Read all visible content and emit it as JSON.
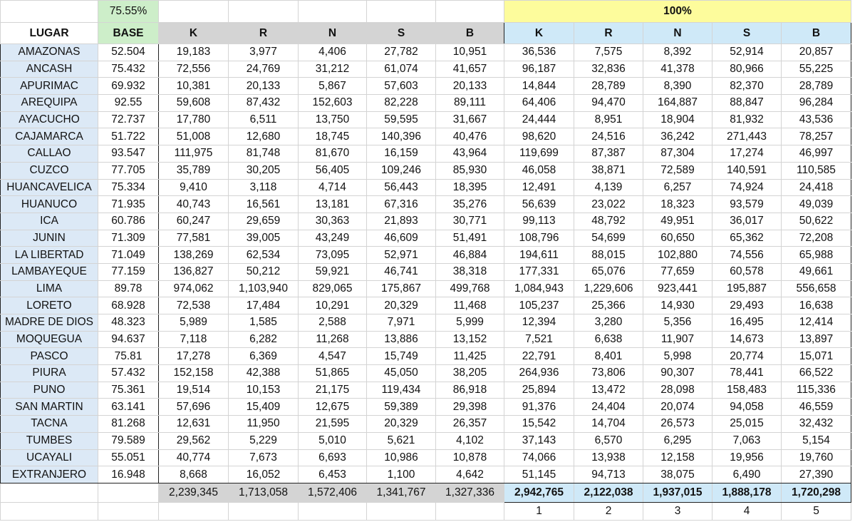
{
  "sheet": {
    "base_percent": "75.55%",
    "full_percent": "100%",
    "headers": {
      "lugar": "LUGAR",
      "base": "BASE",
      "votes_base": [
        "K",
        "R",
        "N",
        "S",
        "B"
      ],
      "votes_full": [
        "K",
        "R",
        "N",
        "S",
        "B"
      ]
    },
    "rows": [
      {
        "lugar": "AMAZONAS",
        "base": "52.504",
        "v1": [
          "19,183",
          "3,977",
          "4,406",
          "27,782",
          "10,951"
        ],
        "v2": [
          "36,536",
          "7,575",
          "8,392",
          "52,914",
          "20,857"
        ]
      },
      {
        "lugar": "ANCASH",
        "base": "75.432",
        "v1": [
          "72,556",
          "24,769",
          "31,212",
          "61,074",
          "41,657"
        ],
        "v2": [
          "96,187",
          "32,836",
          "41,378",
          "80,966",
          "55,225"
        ]
      },
      {
        "lugar": "APURIMAC",
        "base": "69.932",
        "v1": [
          "10,381",
          "20,133",
          "5,867",
          "57,603",
          "20,133"
        ],
        "v2": [
          "14,844",
          "28,789",
          "8,390",
          "82,370",
          "28,789"
        ]
      },
      {
        "lugar": "AREQUIPA",
        "base": "92.55",
        "v1": [
          "59,608",
          "87,432",
          "152,603",
          "82,228",
          "89,111"
        ],
        "v2": [
          "64,406",
          "94,470",
          "164,887",
          "88,847",
          "96,284"
        ]
      },
      {
        "lugar": "AYACUCHO",
        "base": "72.737",
        "v1": [
          "17,780",
          "6,511",
          "13,750",
          "59,595",
          "31,667"
        ],
        "v2": [
          "24,444",
          "8,951",
          "18,904",
          "81,932",
          "43,536"
        ]
      },
      {
        "lugar": "CAJAMARCA",
        "base": "51.722",
        "v1": [
          "51,008",
          "12,680",
          "18,745",
          "140,396",
          "40,476"
        ],
        "v2": [
          "98,620",
          "24,516",
          "36,242",
          "271,443",
          "78,257"
        ]
      },
      {
        "lugar": "CALLAO",
        "base": "93.547",
        "v1": [
          "111,975",
          "81,748",
          "81,670",
          "16,159",
          "43,964"
        ],
        "v2": [
          "119,699",
          "87,387",
          "87,304",
          "17,274",
          "46,997"
        ]
      },
      {
        "lugar": "CUZCO",
        "base": "77.705",
        "v1": [
          "35,789",
          "30,205",
          "56,405",
          "109,246",
          "85,930"
        ],
        "v2": [
          "46,058",
          "38,871",
          "72,589",
          "140,591",
          "110,585"
        ]
      },
      {
        "lugar": "HUANCAVELICA",
        "base": "75.334",
        "v1": [
          "9,410",
          "3,118",
          "4,714",
          "56,443",
          "18,395"
        ],
        "v2": [
          "12,491",
          "4,139",
          "6,257",
          "74,924",
          "24,418"
        ]
      },
      {
        "lugar": "HUANUCO",
        "base": "71.935",
        "v1": [
          "40,743",
          "16,561",
          "13,181",
          "67,316",
          "35,276"
        ],
        "v2": [
          "56,639",
          "23,022",
          "18,323",
          "93,579",
          "49,039"
        ]
      },
      {
        "lugar": "ICA",
        "base": "60.786",
        "v1": [
          "60,247",
          "29,659",
          "30,363",
          "21,893",
          "30,771"
        ],
        "v2": [
          "99,113",
          "48,792",
          "49,951",
          "36,017",
          "50,622"
        ]
      },
      {
        "lugar": "JUNIN",
        "base": "71.309",
        "v1": [
          "77,581",
          "39,005",
          "43,249",
          "46,609",
          "51,491"
        ],
        "v2": [
          "108,796",
          "54,699",
          "60,650",
          "65,362",
          "72,208"
        ]
      },
      {
        "lugar": "LA LIBERTAD",
        "base": "71.049",
        "v1": [
          "138,269",
          "62,534",
          "73,095",
          "52,971",
          "46,884"
        ],
        "v2": [
          "194,611",
          "88,015",
          "102,880",
          "74,556",
          "65,988"
        ]
      },
      {
        "lugar": "LAMBAYEQUE",
        "base": "77.159",
        "v1": [
          "136,827",
          "50,212",
          "59,921",
          "46,741",
          "38,318"
        ],
        "v2": [
          "177,331",
          "65,076",
          "77,659",
          "60,578",
          "49,661"
        ]
      },
      {
        "lugar": "LIMA",
        "base": "89.78",
        "v1": [
          "974,062",
          "1,103,940",
          "829,065",
          "175,867",
          "499,768"
        ],
        "v2": [
          "1,084,943",
          "1,229,606",
          "923,441",
          "195,887",
          "556,658"
        ]
      },
      {
        "lugar": "LORETO",
        "base": "68.928",
        "v1": [
          "72,538",
          "17,484",
          "10,291",
          "20,329",
          "11,468"
        ],
        "v2": [
          "105,237",
          "25,366",
          "14,930",
          "29,493",
          "16,638"
        ]
      },
      {
        "lugar": "MADRE DE DIOS",
        "base": "48.323",
        "v1": [
          "5,989",
          "1,585",
          "2,588",
          "7,971",
          "5,999"
        ],
        "v2": [
          "12,394",
          "3,280",
          "5,356",
          "16,495",
          "12,414"
        ]
      },
      {
        "lugar": "MOQUEGUA",
        "base": "94.637",
        "v1": [
          "7,118",
          "6,282",
          "11,268",
          "13,886",
          "13,152"
        ],
        "v2": [
          "7,521",
          "6,638",
          "11,907",
          "14,673",
          "13,897"
        ]
      },
      {
        "lugar": "PASCO",
        "base": "75.81",
        "v1": [
          "17,278",
          "6,369",
          "4,547",
          "15,749",
          "11,425"
        ],
        "v2": [
          "22,791",
          "8,401",
          "5,998",
          "20,774",
          "15,071"
        ]
      },
      {
        "lugar": "PIURA",
        "base": "57.432",
        "v1": [
          "152,158",
          "42,388",
          "51,865",
          "45,050",
          "38,205"
        ],
        "v2": [
          "264,936",
          "73,806",
          "90,307",
          "78,441",
          "66,522"
        ]
      },
      {
        "lugar": "PUNO",
        "base": "75.361",
        "v1": [
          "19,514",
          "10,153",
          "21,175",
          "119,434",
          "86,918"
        ],
        "v2": [
          "25,894",
          "13,472",
          "28,098",
          "158,483",
          "115,336"
        ]
      },
      {
        "lugar": "SAN MARTIN",
        "base": "63.141",
        "v1": [
          "57,696",
          "15,409",
          "12,675",
          "59,389",
          "29,398"
        ],
        "v2": [
          "91,376",
          "24,404",
          "20,074",
          "94,058",
          "46,559"
        ]
      },
      {
        "lugar": "TACNA",
        "base": "81.268",
        "v1": [
          "12,631",
          "11,950",
          "21,595",
          "20,329",
          "26,357"
        ],
        "v2": [
          "15,542",
          "14,704",
          "26,573",
          "25,015",
          "32,432"
        ]
      },
      {
        "lugar": "TUMBES",
        "base": "79.589",
        "v1": [
          "29,562",
          "5,229",
          "5,010",
          "5,621",
          "4,102"
        ],
        "v2": [
          "37,143",
          "6,570",
          "6,295",
          "7,063",
          "5,154"
        ]
      },
      {
        "lugar": "UCAYALI",
        "base": "55.051",
        "v1": [
          "40,774",
          "7,673",
          "6,693",
          "10,986",
          "10,878"
        ],
        "v2": [
          "74,066",
          "13,938",
          "12,158",
          "19,956",
          "19,760"
        ]
      },
      {
        "lugar": "EXTRANJERO",
        "base": "16.948",
        "v1": [
          "8,668",
          "16,052",
          "6,453",
          "1,100",
          "4,642"
        ],
        "v2": [
          "51,145",
          "94,713",
          "38,075",
          "6,490",
          "27,390"
        ]
      }
    ],
    "totals_base": [
      "2,239,345",
      "1,713,058",
      "1,572,406",
      "1,341,767",
      "1,327,336"
    ],
    "totals_full": [
      "2,942,765",
      "2,122,038",
      "1,937,015",
      "1,888,178",
      "1,720,298"
    ],
    "ranks": [
      "1",
      "2",
      "3",
      "4",
      "5"
    ],
    "colors": {
      "lugar_fill": "#dce9f6",
      "base_header_fill": "#cdeec9",
      "full_header_fill": "#cfe9f8",
      "percent_100_fill": "#fdfc9c",
      "totals_base_fill": "#d4d4d4",
      "rank_text": "#cc2a2a"
    }
  }
}
